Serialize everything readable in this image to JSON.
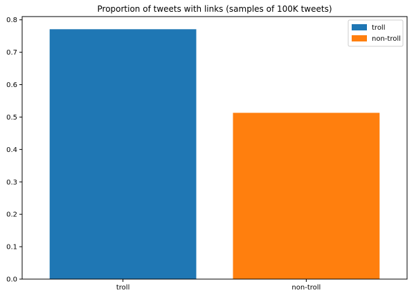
{
  "chart_data": {
    "type": "bar",
    "title": "Proportion of tweets with links (samples of 100K tweets)",
    "categories": [
      "troll",
      "non-troll"
    ],
    "values": [
      0.771,
      0.513
    ],
    "colors": [
      "#1f77b4",
      "#ff7f0e"
    ],
    "xlabel": "",
    "ylabel": "",
    "ylim": [
      0,
      0.81
    ],
    "yticks": [
      "0.0",
      "0.1",
      "0.2",
      "0.3",
      "0.4",
      "0.5",
      "0.6",
      "0.7",
      "0.8"
    ],
    "grid": false,
    "legend": {
      "position": "top-right",
      "entries": [
        {
          "label": "troll",
          "color": "#1f77b4"
        },
        {
          "label": "non-troll",
          "color": "#ff7f0e"
        }
      ]
    }
  }
}
